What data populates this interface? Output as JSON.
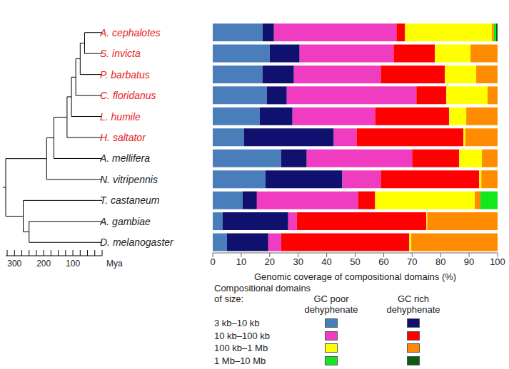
{
  "chart_data": [
    {
      "type": "bar",
      "orientation": "horizontal",
      "stacked": true,
      "xlabel": "Genomic coverage of compositional domains (%)",
      "xlim": [
        0,
        100
      ],
      "xticks": [
        0,
        10,
        20,
        30,
        40,
        50,
        60,
        70,
        80,
        90,
        100
      ],
      "categories": [
        "A. cephalotes",
        "S. invicta",
        "P. barbatus",
        "C. floridanus",
        "L. humile",
        "H. saltator",
        "A. mellifera",
        "N. vitripennis",
        "T. castaneum",
        "A. gambiae",
        "D. melanogaster"
      ],
      "series": [
        {
          "name": "3 kb–10 kb",
          "color": "#4a7ebb",
          "values": [
            17.5,
            20,
            17.5,
            19,
            16.5,
            11,
            24,
            18.5,
            10.5,
            3.5,
            5
          ]
        },
        {
          "name": "3 kb–10 kb",
          "color": "#10106e",
          "values": [
            4,
            10.5,
            11,
            7,
            11.5,
            31.5,
            9,
            27,
            5,
            23,
            14.5
          ]
        },
        {
          "name": "10 kb–100 kb",
          "color": "#f03cc0",
          "values": [
            43,
            33,
            30.5,
            45.5,
            29,
            8,
            37,
            13.5,
            35.5,
            3,
            4.5
          ]
        },
        {
          "name": "10 kb–100 kb",
          "color": "#ff0000",
          "values": [
            3,
            14.5,
            22.5,
            10.5,
            26,
            37.5,
            16.5,
            34.5,
            6,
            45.5,
            45
          ]
        },
        {
          "name": "100 kb–1 Mb",
          "color": "#ffff00",
          "values": [
            30.5,
            12.5,
            11,
            14.5,
            6,
            0.7,
            8,
            0.8,
            35,
            0.3,
            0.7
          ]
        },
        {
          "name": "100 kb–1 Mb",
          "color": "#ff8c00",
          "values": [
            0.7,
            9.5,
            7.5,
            3.5,
            11,
            11.3,
            5.5,
            5.7,
            2,
            24.7,
            30.3
          ]
        },
        {
          "name": "1 Mb–10 Mb",
          "color": "#13e81e",
          "values": [
            0.8,
            0,
            0,
            0,
            0,
            0,
            0,
            0,
            6,
            0,
            0
          ]
        },
        {
          "name": "1 Mb–10 Mb",
          "color": "#0a5c12",
          "values": [
            0.5,
            0,
            0,
            0,
            0,
            0,
            0,
            0,
            0,
            0,
            0
          ]
        }
      ],
      "legend_title": [
        "Compositional domains",
        "of size:"
      ],
      "legend_columns": [
        [
          "GC poor",
          "dehyphenate"
        ],
        [
          "GC rich",
          "dehyphenate"
        ]
      ]
    },
    {
      "type": "tree",
      "xlabel": "Mya",
      "xlim": [
        330,
        0
      ],
      "xticks": [
        300,
        200,
        100
      ],
      "minor_ticks": [
        325,
        275,
        250,
        225,
        175,
        150,
        125,
        75,
        50,
        25,
        0
      ],
      "root": {
        "age": 330,
        "children": [
          {
            "age": 190,
            "children": [
              {
                "age": 165,
                "children": [
                  {
                    "age": 120,
                    "children": [
                      {
                        "age": 105,
                        "children": [
                          {
                            "age": 90,
                            "children": [
                              {
                                "age": 75,
                                "children": [
                                  {
                                    "age": 60,
                                    "children": [
                                      {
                                        "leaf": 0
                                      },
                                      {
                                        "leaf": 1
                                      }
                                    ]
                                  },
                                  {
                                    "leaf": 2
                                  }
                                ]
                              },
                              {
                                "leaf": 3
                              }
                            ]
                          },
                          {
                            "leaf": 4
                          }
                        ]
                      },
                      {
                        "leaf": 5
                      }
                    ]
                  },
                  {
                    "leaf": 6
                  }
                ]
              },
              {
                "leaf": 7
              }
            ]
          },
          {
            "age": 270,
            "children": [
              {
                "leaf": 8
              },
              {
                "age": 250,
                "children": [
                  {
                    "leaf": 9
                  },
                  {
                    "leaf": 10
                  }
                ]
              }
            ]
          }
        ]
      }
    }
  ]
}
